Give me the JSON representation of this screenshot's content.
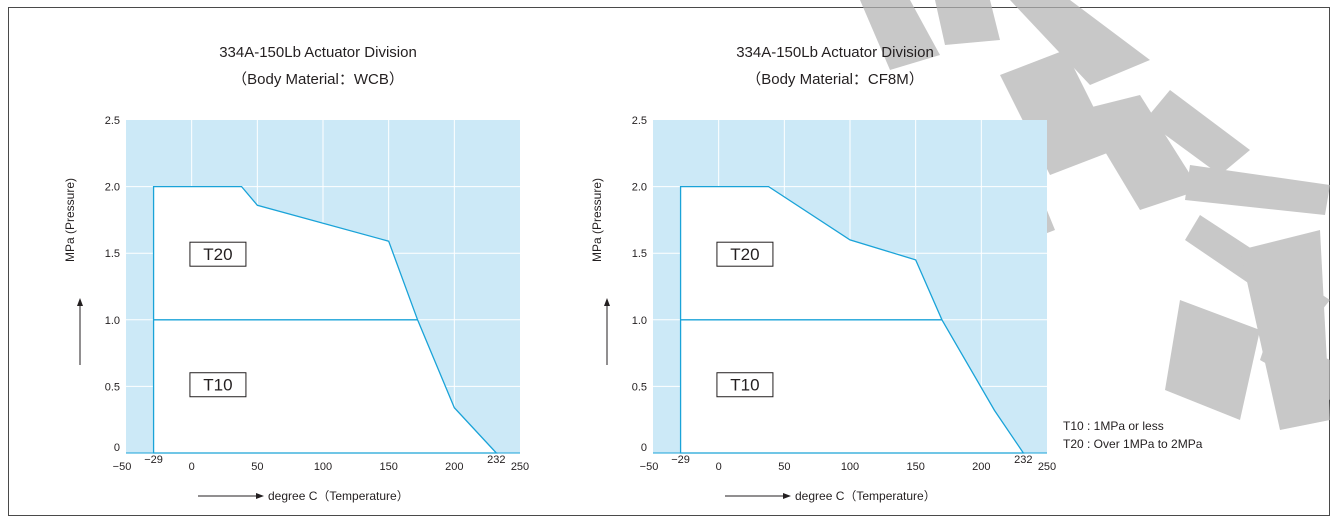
{
  "chart_data": [
    {
      "type": "area",
      "title": "334A-150Lb  Actuator Division",
      "subtitle": "（Body Material：WCB）",
      "xlabel": "degree C（Temperature）",
      "ylabel": "MPa (Pressure)",
      "xlim": [
        -50,
        250
      ],
      "ylim": [
        0,
        2.5
      ],
      "x_ticks": [
        "−50",
        "0",
        "50",
        "100",
        "150",
        "200",
        "250"
      ],
      "x_tick_values": [
        -50,
        0,
        50,
        100,
        150,
        200,
        250
      ],
      "x_special_ticks": [
        {
          "label": "−29",
          "value": -29
        },
        {
          "label": "232",
          "value": 232
        }
      ],
      "y_ticks": [
        "0",
        "0.5",
        "1.0",
        "1.5",
        "2.0",
        "2.5"
      ],
      "y_tick_values": [
        0,
        0.5,
        1.0,
        1.5,
        2.0,
        2.5
      ],
      "grid": true,
      "boundary": [
        {
          "x": -29,
          "y": 0
        },
        {
          "x": -29,
          "y": 2.0
        },
        {
          "x": 38,
          "y": 2.0
        },
        {
          "x": 50,
          "y": 1.86
        },
        {
          "x": 150,
          "y": 1.59
        },
        {
          "x": 172,
          "y": 1.0
        },
        {
          "x": 200,
          "y": 0.34
        },
        {
          "x": 232,
          "y": 0
        }
      ],
      "divider": [
        {
          "x": -29,
          "y": 1.0
        },
        {
          "x": 172,
          "y": 1.0
        }
      ],
      "zones": [
        {
          "label": "T20",
          "x": 20,
          "y": 1.5
        },
        {
          "label": "T10",
          "x": 20,
          "y": 0.52
        }
      ]
    },
    {
      "type": "area",
      "title": "334A-150Lb  Actuator Division",
      "subtitle": "（Body Material：CF8M）",
      "xlabel": "degree C（Temperature）",
      "ylabel": "MPa (Pressure)",
      "xlim": [
        -50,
        250
      ],
      "ylim": [
        0,
        2.5
      ],
      "x_ticks": [
        "−50",
        "0",
        "50",
        "100",
        "150",
        "200",
        "250"
      ],
      "x_tick_values": [
        -50,
        0,
        50,
        100,
        150,
        200,
        250
      ],
      "x_special_ticks": [
        {
          "label": "−29",
          "value": -29
        },
        {
          "label": "232",
          "value": 232
        }
      ],
      "y_ticks": [
        "0",
        "0.5",
        "1.0",
        "1.5",
        "2.0",
        "2.5"
      ],
      "y_tick_values": [
        0,
        0.5,
        1.0,
        1.5,
        2.0,
        2.5
      ],
      "grid": true,
      "boundary": [
        {
          "x": -29,
          "y": 0
        },
        {
          "x": -29,
          "y": 2.0
        },
        {
          "x": 38,
          "y": 2.0
        },
        {
          "x": 100,
          "y": 1.6
        },
        {
          "x": 150,
          "y": 1.45
        },
        {
          "x": 170,
          "y": 1.0
        },
        {
          "x": 210,
          "y": 0.32
        },
        {
          "x": 232,
          "y": 0
        }
      ],
      "divider": [
        {
          "x": -29,
          "y": 1.0
        },
        {
          "x": 170,
          "y": 1.0
        }
      ],
      "zones": [
        {
          "label": "T20",
          "x": 20,
          "y": 1.5
        },
        {
          "label": "T10",
          "x": 20,
          "y": 0.52
        }
      ]
    }
  ],
  "legend_notes": [
    "T10 : 1MPa or less",
    "T20 : Over 1MPa to 2MPa"
  ],
  "colors": {
    "fill": "#cce9f7",
    "line": "#1aa3d8",
    "grid": "#ffffff",
    "text": "#231f20",
    "watermark": "#b3b3b3"
  }
}
